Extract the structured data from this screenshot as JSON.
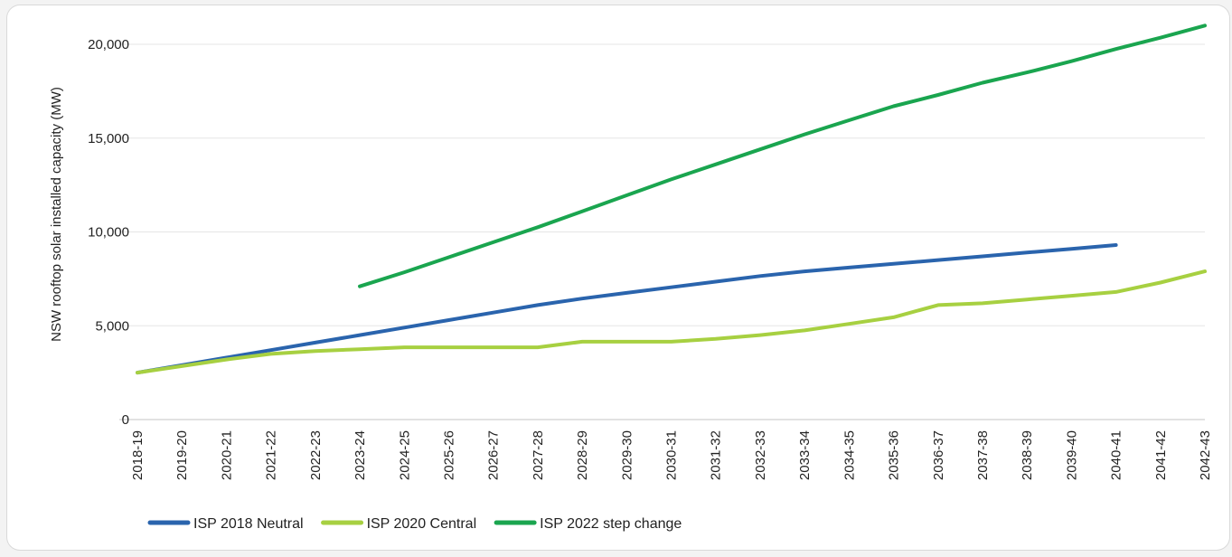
{
  "chart_data": {
    "type": "line",
    "title": "",
    "xlabel": "",
    "ylabel": "NSW rooftop solar installed capacity (MW)",
    "ylim": [
      0,
      20000
    ],
    "yticks": [
      0,
      5000,
      10000,
      15000,
      20000
    ],
    "ytick_labels": [
      "0",
      "5,000",
      "10,000",
      "15,000",
      "20,000"
    ],
    "grid": true,
    "legend_position": "bottom-left",
    "categories": [
      "2018-19",
      "2019-20",
      "2020-21",
      "2021-22",
      "2022-23",
      "2023-24",
      "2024-25",
      "2025-26",
      "2026-27",
      "2027-28",
      "2028-29",
      "2029-30",
      "2030-31",
      "2031-32",
      "2032-33",
      "2033-34",
      "2034-35",
      "2035-36",
      "2036-37",
      "2037-38",
      "2038-39",
      "2039-40",
      "2040-41",
      "2041-42",
      "2042-43"
    ],
    "series": [
      {
        "name": "ISP 2018 Neutral",
        "color": "#2a64ad",
        "values": [
          2500,
          2900,
          3300,
          3700,
          4100,
          4500,
          4900,
          5300,
          5700,
          6100,
          6450,
          6750,
          7050,
          7350,
          7650,
          7900,
          8100,
          8300,
          8500,
          8700,
          8900,
          9100,
          9300,
          null,
          null
        ]
      },
      {
        "name": "ISP 2020 Central",
        "color": "#a7d041",
        "values": [
          2500,
          2850,
          3200,
          3500,
          3650,
          3750,
          3850,
          3850,
          3850,
          3850,
          4150,
          4150,
          4150,
          4300,
          4500,
          4750,
          5100,
          5450,
          6100,
          6200,
          6400,
          6600,
          6800,
          7300,
          7900
        ]
      },
      {
        "name": "ISP 2022 step change",
        "color": "#1aa54f",
        "values": [
          null,
          null,
          null,
          null,
          null,
          7100,
          7850,
          8650,
          9450,
          10250,
          11100,
          11950,
          12800,
          13600,
          14400,
          15200,
          15950,
          16700,
          17300,
          17950,
          18500,
          19100,
          19750,
          20350,
          21000
        ]
      }
    ]
  }
}
